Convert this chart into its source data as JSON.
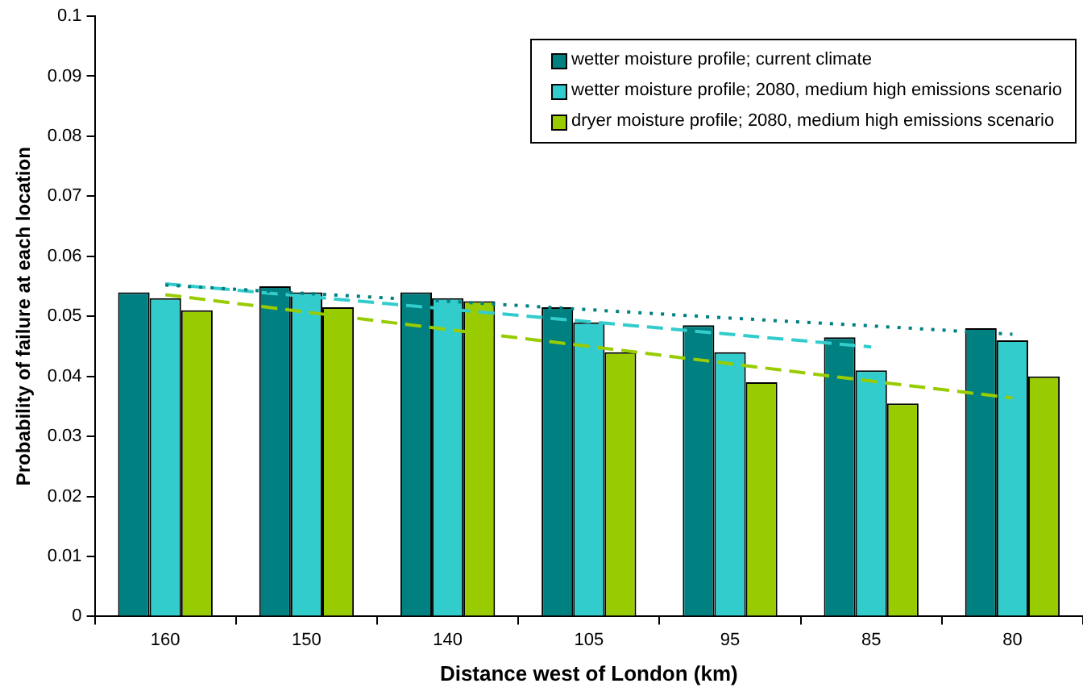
{
  "chart_data": {
    "type": "bar",
    "xlabel": "Distance west of London (km)",
    "ylabel": "Probability of failure at each location",
    "categories": [
      "160",
      "150",
      "140",
      "105",
      "95",
      "85",
      "80"
    ],
    "series": [
      {
        "name": "wetter moisture profile; current climate",
        "color": "#008080",
        "values": [
          0.054,
          0.055,
          0.054,
          0.0515,
          0.0485,
          0.0465,
          0.048
        ]
      },
      {
        "name": "wetter moisture profile; 2080, medium high emissions scenario",
        "color": "#33cccc",
        "values": [
          0.053,
          0.054,
          0.053,
          0.049,
          0.044,
          0.041,
          0.046
        ]
      },
      {
        "name": "dryer moisture profile; 2080, medium high emissions scenario",
        "color": "#99cc00",
        "values": [
          0.051,
          0.0515,
          0.0525,
          0.044,
          0.039,
          0.0355,
          0.04
        ]
      },
      {
        "type": "line",
        "line_style": "dotted",
        "color": "#008080",
        "values": [
          0.0552,
          0.0538,
          0.0525,
          0.0511,
          0.0497,
          0.0484,
          0.047
        ]
      },
      {
        "type": "line",
        "line_style": "dashed",
        "color": "#33cccc",
        "values": [
          0.0554,
          0.0533,
          0.0512,
          0.0491,
          0.047,
          0.0449,
          null
        ]
      },
      {
        "type": "line",
        "line_style": "dashed",
        "color": "#99cc00",
        "values": [
          0.0536,
          0.0507,
          0.0478,
          0.045,
          0.0421,
          0.0392,
          0.0364
        ]
      }
    ],
    "ylim": [
      0,
      0.1
    ],
    "yticks": [
      0,
      0.01,
      0.02,
      0.03,
      0.04,
      0.05,
      0.06,
      0.07,
      0.08,
      0.09,
      0.1
    ],
    "grid": false,
    "legend": "top right",
    "marker": "none"
  }
}
